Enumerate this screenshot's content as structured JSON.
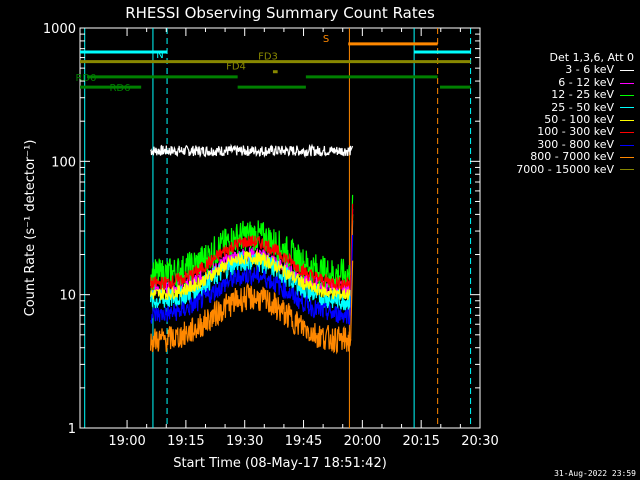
{
  "chart_data": {
    "type": "line",
    "title": "RHESSI Observing Summary Count Rates",
    "xlabel": "Start Time (08-May-17 18:51:42)",
    "ylabel": "Count Rate (s⁻¹ detector⁻¹)",
    "yscale": "log",
    "ylim": [
      1,
      1000
    ],
    "xlim_minutes": [
      18.8,
      20.5
    ],
    "x_ticks": [
      {
        "label": "19:00",
        "t": 19.0
      },
      {
        "label": "19:15",
        "t": 19.25
      },
      {
        "label": "19:30",
        "t": 19.5
      },
      {
        "label": "19:45",
        "t": 19.75
      },
      {
        "label": "20:00",
        "t": 20.0
      },
      {
        "label": "20:15",
        "t": 20.25
      },
      {
        "label": "20:30",
        "t": 20.5
      }
    ],
    "y_ticks": [
      {
        "label": "1",
        "v": 1
      },
      {
        "label": "10",
        "v": 10
      },
      {
        "label": "100",
        "v": 100
      },
      {
        "label": "1000",
        "v": 1000
      }
    ],
    "legend_title": "Det 1,3,6, Att 0",
    "series": [
      {
        "name": "3 - 6 keV",
        "color": "#ffffff",
        "start": 19.1,
        "end": 19.95,
        "base": 120,
        "peak": 0,
        "noise": 0.04
      },
      {
        "name": "6 - 12 keV",
        "color": "#ff00ff",
        "start": 19.1,
        "end": 19.95,
        "base": 11,
        "peak": 9,
        "noise": 0.06
      },
      {
        "name": "12 - 25 keV",
        "color": "#00ff00",
        "start": 19.1,
        "end": 19.95,
        "base": 14,
        "peak": 14,
        "noise": 0.12
      },
      {
        "name": "25 - 50 keV",
        "color": "#00ffff",
        "start": 19.1,
        "end": 19.95,
        "base": 9,
        "peak": 9,
        "noise": 0.08
      },
      {
        "name": "50 - 100 keV",
        "color": "#ffff00",
        "start": 19.1,
        "end": 19.95,
        "base": 10,
        "peak": 9,
        "noise": 0.05
      },
      {
        "name": "100 - 300 keV",
        "color": "#ff0000",
        "start": 19.1,
        "end": 19.95,
        "base": 12,
        "peak": 13,
        "noise": 0.05
      },
      {
        "name": "300 - 800 keV",
        "color": "#0000ff",
        "start": 19.1,
        "end": 19.95,
        "base": 7,
        "peak": 7,
        "noise": 0.07
      },
      {
        "name": "800 - 7000 keV",
        "color": "#ff8800",
        "start": 19.1,
        "end": 19.95,
        "base": 4.5,
        "peak": 5,
        "noise": 0.1
      },
      {
        "name": "7000 - 15000 keV",
        "color": "#888800",
        "start": 0,
        "end": 0,
        "base": 0,
        "peak": 0,
        "noise": 0
      }
    ],
    "flag_bars": [
      {
        "label": "N",
        "color": "#00ffff",
        "y": 660,
        "segments": [
          [
            18.8,
            19.17
          ],
          [
            20.22,
            20.46
          ]
        ]
      },
      {
        "label": "S",
        "color": "#ff8800",
        "y": 760,
        "segments": [
          [
            19.94,
            20.32
          ]
        ]
      },
      {
        "label": "FD3",
        "color": "#888800",
        "y": 560,
        "segments": [
          [
            18.8,
            20.46
          ]
        ]
      },
      {
        "label": "FD4",
        "color": "#888800",
        "y": 470,
        "segments": [
          [
            19.62,
            19.64
          ]
        ]
      },
      {
        "label": "RD0",
        "color": "#008000",
        "y": 430,
        "segments": [
          [
            18.83,
            19.47
          ],
          [
            19.76,
            20.32
          ]
        ]
      },
      {
        "label": "RD6",
        "color": "#008000",
        "y": 360,
        "segments": [
          [
            18.8,
            19.06
          ],
          [
            19.47,
            19.76
          ],
          [
            20.33,
            20.46
          ]
        ]
      }
    ],
    "vlines": [
      {
        "t": 18.82,
        "color": "#00ffff",
        "style": "solid"
      },
      {
        "t": 19.11,
        "color": "#00ffff",
        "style": "solid"
      },
      {
        "t": 19.17,
        "color": "#00ffff",
        "style": "dashed"
      },
      {
        "t": 19.945,
        "color": "#ff8800",
        "style": "solid"
      },
      {
        "t": 20.22,
        "color": "#00ffff",
        "style": "solid"
      },
      {
        "t": 20.32,
        "color": "#ff8800",
        "style": "dashed"
      },
      {
        "t": 20.46,
        "color": "#00ffff",
        "style": "dashed"
      }
    ]
  },
  "footer": {
    "timestamp": "31-Aug-2022 23:59"
  }
}
